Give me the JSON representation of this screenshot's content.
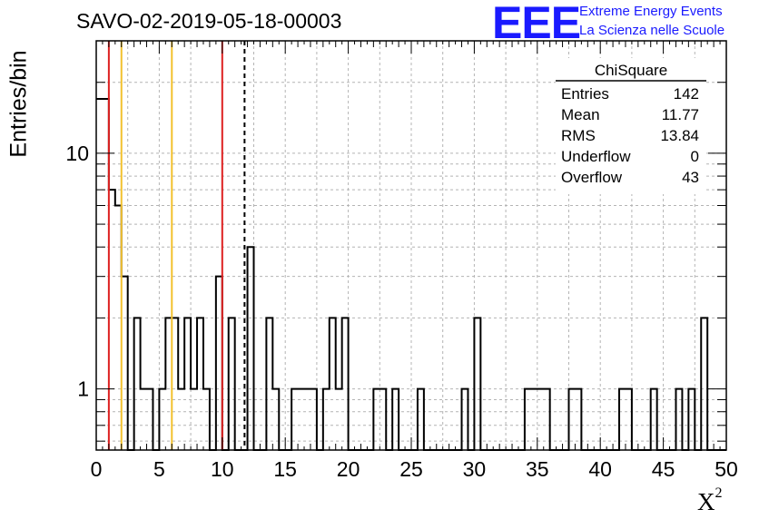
{
  "run_title": "SAVO-02-2019-05-18-00003",
  "logo": {
    "mark": "EEE",
    "line1": "Extreme Energy Events",
    "line2": "La Scienza nelle Scuole",
    "color": "#1a1aff"
  },
  "chart_data": {
    "type": "bar",
    "title": "SAVO-02-2019-05-18-00003",
    "xlabel": "X",
    "xlabel_superscript": "2",
    "ylabel": "Entries/bin",
    "xlim": [
      0,
      50
    ],
    "ylim": [
      0.55,
      30
    ],
    "yscale": "log",
    "grid": true,
    "bin_width": 0.5,
    "x_ticks": [
      "0",
      "5",
      "10",
      "15",
      "20",
      "25",
      "30",
      "35",
      "40",
      "45",
      "50"
    ],
    "y_ticks": [
      "1",
      "10"
    ],
    "bins": [
      {
        "x": 0,
        "count": 17
      },
      {
        "x": 0.5,
        "count": 17
      },
      {
        "x": 1,
        "count": 7
      },
      {
        "x": 1.5,
        "count": 6
      },
      {
        "x": 2,
        "count": 3
      },
      {
        "x": 2.5,
        "count": 0
      },
      {
        "x": 3,
        "count": 2
      },
      {
        "x": 3.5,
        "count": 1
      },
      {
        "x": 4,
        "count": 1
      },
      {
        "x": 4.5,
        "count": 0
      },
      {
        "x": 5,
        "count": 1
      },
      {
        "x": 5.5,
        "count": 2
      },
      {
        "x": 6,
        "count": 2
      },
      {
        "x": 6.5,
        "count": 1
      },
      {
        "x": 7,
        "count": 2
      },
      {
        "x": 7.5,
        "count": 1
      },
      {
        "x": 8,
        "count": 2
      },
      {
        "x": 8.5,
        "count": 1
      },
      {
        "x": 9,
        "count": 0
      },
      {
        "x": 9.5,
        "count": 3
      },
      {
        "x": 10,
        "count": 0
      },
      {
        "x": 10.5,
        "count": 2
      },
      {
        "x": 11,
        "count": 0
      },
      {
        "x": 11.5,
        "count": 0
      },
      {
        "x": 12,
        "count": 4
      },
      {
        "x": 12.5,
        "count": 0
      },
      {
        "x": 13,
        "count": 0
      },
      {
        "x": 13.5,
        "count": 2
      },
      {
        "x": 14,
        "count": 1
      },
      {
        "x": 14.5,
        "count": 0
      },
      {
        "x": 15,
        "count": 0
      },
      {
        "x": 15.5,
        "count": 1
      },
      {
        "x": 16,
        "count": 1
      },
      {
        "x": 16.5,
        "count": 1
      },
      {
        "x": 17,
        "count": 1
      },
      {
        "x": 17.5,
        "count": 0
      },
      {
        "x": 18,
        "count": 1
      },
      {
        "x": 18.5,
        "count": 2
      },
      {
        "x": 19,
        "count": 1
      },
      {
        "x": 19.5,
        "count": 2
      },
      {
        "x": 22,
        "count": 1
      },
      {
        "x": 22.5,
        "count": 1
      },
      {
        "x": 23,
        "count": 0
      },
      {
        "x": 23.5,
        "count": 1
      },
      {
        "x": 25.5,
        "count": 1
      },
      {
        "x": 29,
        "count": 1
      },
      {
        "x": 30,
        "count": 2
      },
      {
        "x": 34,
        "count": 1
      },
      {
        "x": 34.5,
        "count": 1
      },
      {
        "x": 35,
        "count": 1
      },
      {
        "x": 35.5,
        "count": 1
      },
      {
        "x": 37.5,
        "count": 1
      },
      {
        "x": 38,
        "count": 1
      },
      {
        "x": 41.5,
        "count": 1
      },
      {
        "x": 42,
        "count": 1
      },
      {
        "x": 44,
        "count": 1
      },
      {
        "x": 46,
        "count": 1
      },
      {
        "x": 47,
        "count": 1
      },
      {
        "x": 48,
        "count": 2
      }
    ],
    "reference_lines": [
      {
        "x": 1.0,
        "color": "#dd2020",
        "style": "solid"
      },
      {
        "x": 10.0,
        "color": "#dd2020",
        "style": "solid"
      },
      {
        "x": 2.0,
        "color": "#f2c12e",
        "style": "solid"
      },
      {
        "x": 6.0,
        "color": "#f2c12e",
        "style": "solid"
      },
      {
        "x": 11.77,
        "color": "#000000",
        "style": "dashed"
      }
    ],
    "stats_box": {
      "title": "ChiSquare",
      "rows": [
        {
          "label": "Entries",
          "value": "142"
        },
        {
          "label": "Mean",
          "value": "11.77"
        },
        {
          "label": "RMS",
          "value": "13.84"
        },
        {
          "label": "Underflow",
          "value": "0"
        },
        {
          "label": "Overflow",
          "value": "43"
        }
      ]
    }
  }
}
